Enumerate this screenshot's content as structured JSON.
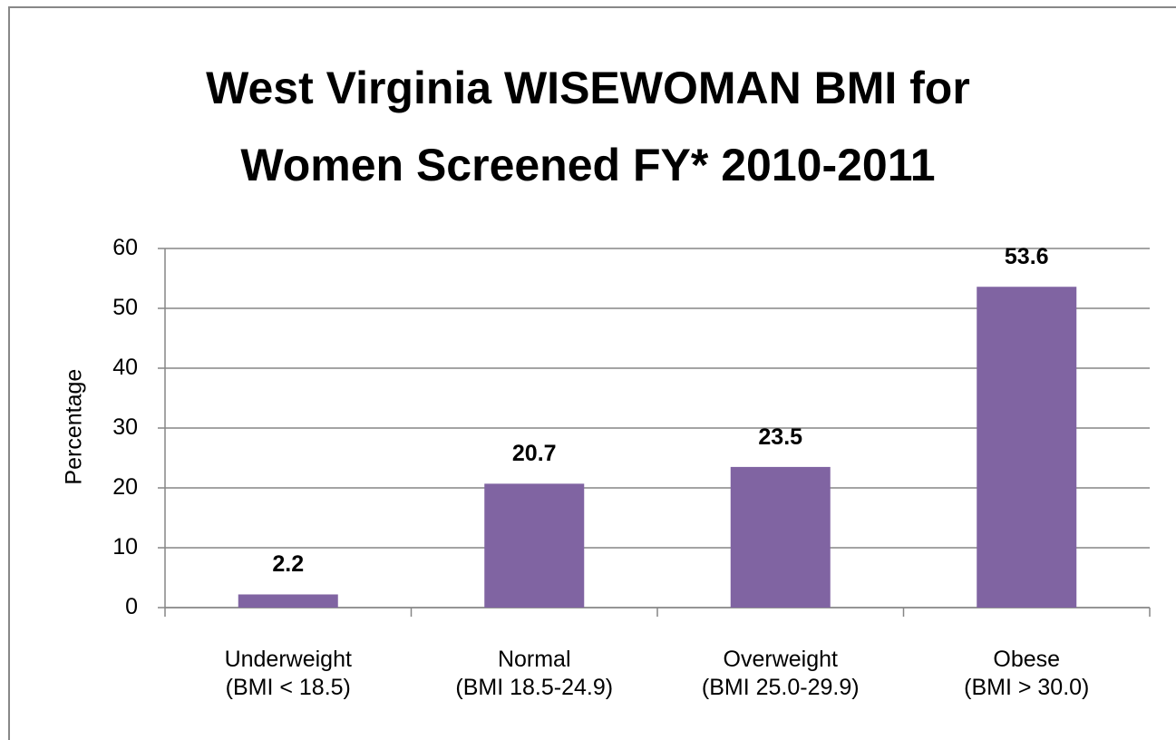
{
  "chart_data": {
    "type": "bar",
    "title": "West Virginia WISEWOMAN BMI for\nWomen Screened FY* 2010-2011",
    "y_label": "Percentage",
    "categories": [
      "Underweight\n(BMI < 18.5)",
      "Normal\n(BMI 18.5-24.9)",
      "Overweight\n(BMI 25.0-29.9)",
      "Obese\n(BMI > 30.0)"
    ],
    "values": [
      2.2,
      20.7,
      23.5,
      53.6
    ],
    "color": "#8064a2",
    "ylim": [
      0,
      60
    ],
    "yticks": [
      0,
      10,
      20,
      30,
      40,
      50,
      60
    ],
    "grid": true
  }
}
